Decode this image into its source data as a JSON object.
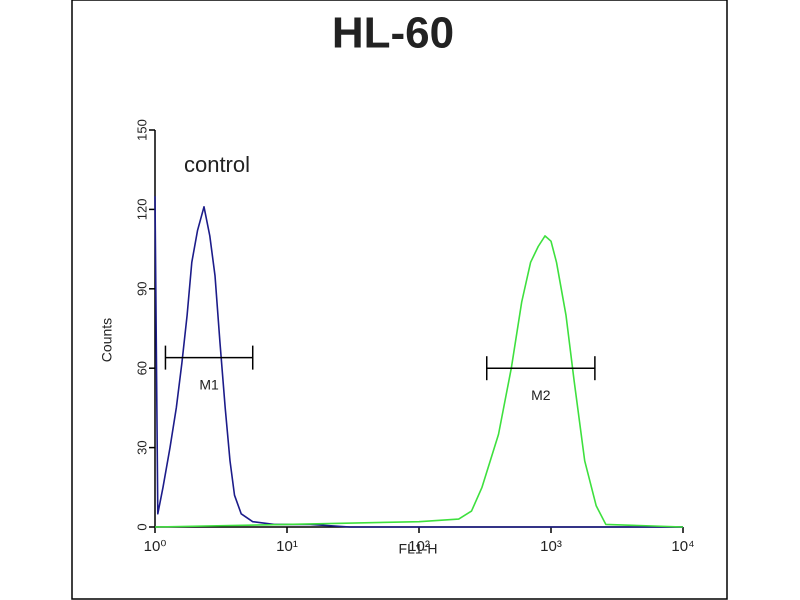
{
  "chart_data": {
    "type": "line",
    "title": "HL-60",
    "xlabel": "FL1-H",
    "ylabel": "Counts",
    "annotation": "control",
    "xscale": "log",
    "xlim": [
      1,
      10000
    ],
    "xticks": [
      {
        "value": 1,
        "label": "10⁰"
      },
      {
        "value": 10,
        "label": "10¹"
      },
      {
        "value": 100,
        "label": "10²"
      },
      {
        "value": 1000,
        "label": "10³"
      },
      {
        "value": 10000,
        "label": "10⁴"
      }
    ],
    "ylim": [
      0,
      150
    ],
    "yticks": [
      0,
      30,
      60,
      90,
      120,
      150
    ],
    "series": [
      {
        "color": "#1c1c8a",
        "x": [
          1,
          1.05,
          1.15,
          1.3,
          1.45,
          1.6,
          1.75,
          1.9,
          2.1,
          2.35,
          2.6,
          2.85,
          3.1,
          3.4,
          3.7,
          4.0,
          4.5,
          5.5,
          8,
          15,
          30,
          100,
          1000,
          10000
        ],
        "values": [
          125,
          5,
          15,
          30,
          45,
          62,
          80,
          100,
          112,
          121,
          110,
          95,
          70,
          45,
          25,
          12,
          5,
          2,
          1,
          1,
          0,
          0,
          0,
          0
        ]
      },
      {
        "color": "#3ee03e",
        "x": [
          1,
          10,
          100,
          200,
          250,
          300,
          400,
          500,
          600,
          700,
          800,
          900,
          1000,
          1100,
          1300,
          1500,
          1800,
          2200,
          2600,
          10000
        ],
        "values": [
          0,
          1,
          2,
          3,
          6,
          15,
          35,
          60,
          85,
          100,
          106,
          110,
          108,
          100,
          80,
          55,
          25,
          8,
          1,
          0
        ]
      }
    ],
    "markers": [
      {
        "label": "M1",
        "range": [
          1.2,
          5.5
        ],
        "y": 64
      },
      {
        "label": "M2",
        "range": [
          326,
          2150
        ],
        "y": 60
      }
    ]
  }
}
